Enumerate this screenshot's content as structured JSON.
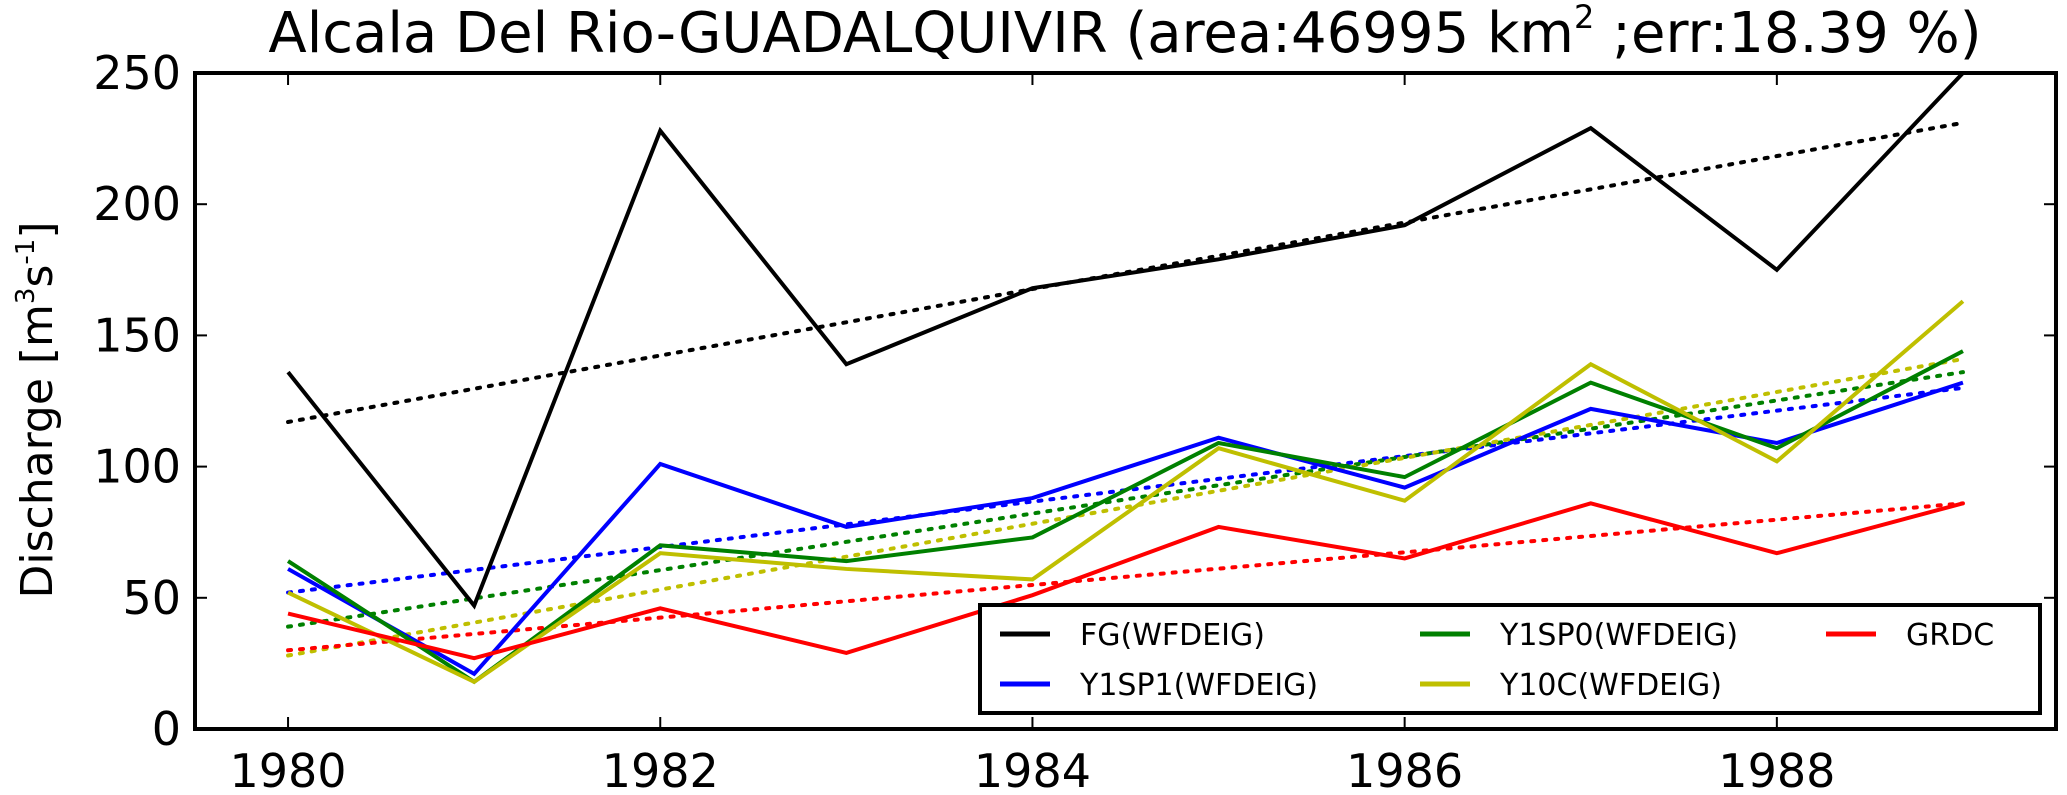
{
  "chart_data": {
    "type": "line",
    "title": "Alcala Del Rio-GUADALQUIVIR (area:46995 km",
    "title_sup": "2",
    "title_rest": " ;err:18.39 %)",
    "ylabel": "Discharge [m",
    "ylabel_sup1": "3",
    "ylabel_mid": "s",
    "ylabel_sup2": "-1",
    "ylabel_end": "]",
    "xlabel": "",
    "x": [
      1980,
      1981,
      1982,
      1983,
      1984,
      1985,
      1986,
      1987,
      1988,
      1989
    ],
    "xlim": [
      1979.5,
      1989.5
    ],
    "ylim": [
      0,
      250
    ],
    "xticks": [
      "1980",
      "1982",
      "1984",
      "1986",
      "1988"
    ],
    "yticks": [
      "0",
      "50",
      "100",
      "150",
      "200",
      "250"
    ],
    "grid": false,
    "legend_position": "lower-right",
    "series": [
      {
        "name": "FG(WFDEIG)",
        "color": "#000000",
        "values": [
          136,
          47,
          228,
          139,
          168,
          179,
          192,
          229,
          175,
          250
        ],
        "trend": [
          117,
          231
        ]
      },
      {
        "name": "Y1SP1(WFDEIG)",
        "color": "#0000ff",
        "values": [
          61,
          21,
          101,
          77,
          88,
          111,
          92,
          122,
          109,
          132
        ],
        "trend": [
          52,
          130
        ]
      },
      {
        "name": "Y1SP0(WFDEIG)",
        "color": "#008000",
        "values": [
          64,
          18,
          70,
          64,
          73,
          109,
          96,
          132,
          107,
          144
        ],
        "trend": [
          39,
          136
        ]
      },
      {
        "name": "Y10C(WFDEIG)",
        "color": "#bfbf00",
        "values": [
          52,
          18,
          67,
          61,
          57,
          107,
          87,
          139,
          102,
          163
        ],
        "trend": [
          28,
          141
        ]
      },
      {
        "name": "GRDC",
        "color": "#ff0000",
        "values": [
          44,
          27,
          46,
          29,
          51,
          77,
          65,
          86,
          67,
          86
        ],
        "trend": [
          30,
          86
        ]
      }
    ],
    "legend_order": [
      0,
      2,
      4,
      1,
      3
    ]
  }
}
